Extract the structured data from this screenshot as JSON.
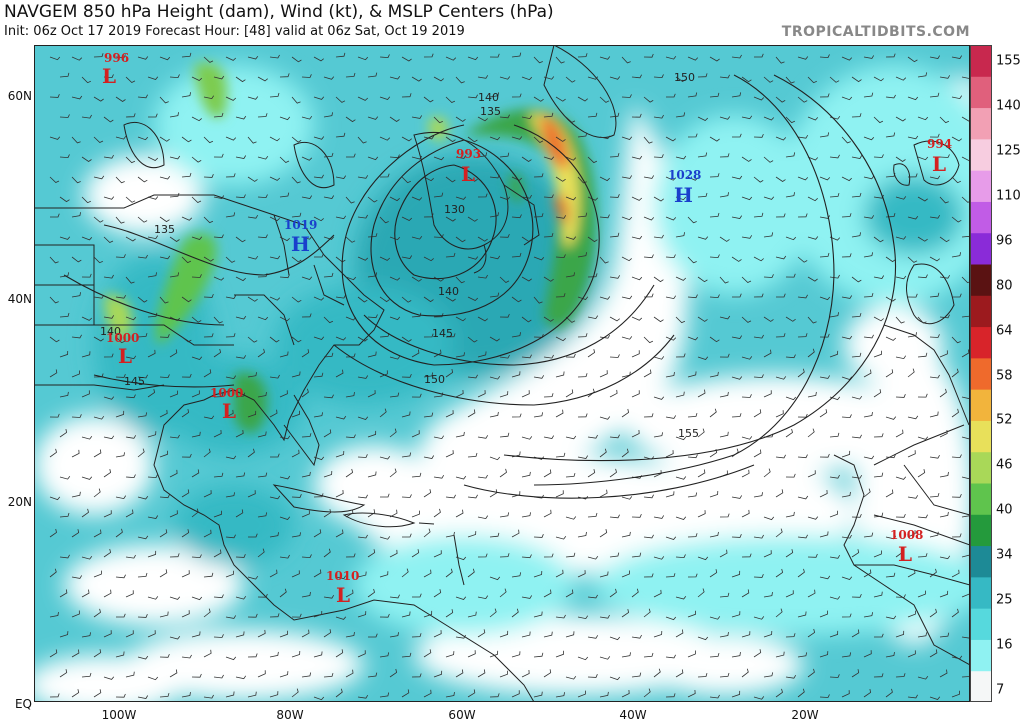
{
  "header": {
    "title": "NAVGEM 850 hPa Height (dam), Wind (kt), & MSLP Centers (hPa)",
    "subtitle": "Init: 06z Oct 17 2019   Forecast Hour: [48]   valid at 06z Sat, Oct 19 2019",
    "brand": "TROPICALTIDBITS.COM"
  },
  "axes": {
    "lat_labels": [
      "60N",
      "40N",
      "20N",
      "EQ"
    ],
    "lon_labels": [
      "100W",
      "80W",
      "60W",
      "40W",
      "20W"
    ]
  },
  "pressure_centers": [
    {
      "type": "L",
      "value": "996"
    },
    {
      "type": "L",
      "value": "993"
    },
    {
      "type": "H",
      "value": "1019"
    },
    {
      "type": "H",
      "value": "1028"
    },
    {
      "type": "L",
      "value": "994"
    },
    {
      "type": "L",
      "value": "1000"
    },
    {
      "type": "L",
      "value": "1000"
    },
    {
      "type": "L",
      "value": "1010"
    },
    {
      "type": "L",
      "value": "1008"
    }
  ],
  "height_contours": [
    "150",
    "140",
    "135",
    "130",
    "140",
    "145",
    "150",
    "155",
    "135",
    "140",
    "145"
  ],
  "colorbar": {
    "labels": [
      "155",
      "140",
      "125",
      "110",
      "96",
      "80",
      "64",
      "58",
      "52",
      "46",
      "40",
      "34",
      "25",
      "16",
      "7"
    ],
    "colors": [
      "#f5f7f7",
      "#8ff2f2",
      "#56d9dd",
      "#36b9c4",
      "#1d8a96",
      "#249a3c",
      "#5fc44d",
      "#a9d858",
      "#e8e05a",
      "#f2b43c",
      "#ef6a2c",
      "#d8242a",
      "#9c1a1e",
      "#5a1212",
      "#8a2bd8",
      "#c15ce6",
      "#e79ce9",
      "#f7cde0",
      "#f2a0b4",
      "#e0607c",
      "#c8284e"
    ]
  },
  "colors": {
    "low": "#d42020",
    "high": "#1a3fcc",
    "land_line": "#222222",
    "ocean_wind_light": "#8ff2f2",
    "ocean_wind_mid": "#4fc8d2"
  }
}
